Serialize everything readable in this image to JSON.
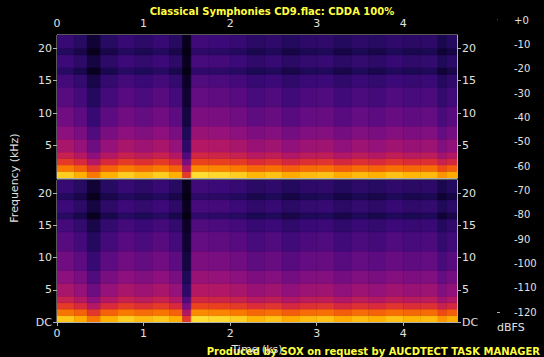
{
  "chart_data": {
    "type": "heatmap",
    "title": "Classical Symphonies CD9.flac: CDDA 100%",
    "annotations": [
      "Produced by SOX on request by AUCDTECT TASK MANAGER"
    ],
    "x_label": "Time (ks)",
    "y_label": "Frequency (kHz)",
    "xlim": [
      0,
      4.62
    ],
    "xticks": [
      0,
      1,
      2,
      3,
      4
    ],
    "ylim": [
      0,
      22.05
    ],
    "time_edges": [
      0,
      0.2,
      0.35,
      0.5,
      0.7,
      0.9,
      1.1,
      1.3,
      1.45,
      1.55,
      1.75,
      2.0,
      2.2,
      2.4,
      2.6,
      2.8,
      3.0,
      3.2,
      3.4,
      3.6,
      3.8,
      4.0,
      4.2,
      4.4,
      4.5,
      4.62
    ],
    "freq_edges": [
      0,
      1,
      2,
      3,
      4,
      6,
      8,
      11,
      14,
      16,
      17,
      19,
      20,
      22.05
    ],
    "channels": [
      {
        "yticks": [
          5,
          10,
          15,
          20
        ],
        "cells": [
          [
            -15,
            -20,
            -30,
            -20,
            -15,
            -18,
            -15,
            -20,
            -45,
            -12,
            -13,
            -15,
            -19,
            -17,
            -21,
            -18,
            -17,
            -21,
            -18,
            -20,
            -17,
            -19,
            -18,
            -25,
            -21
          ],
          [
            -30,
            -35,
            -45,
            -35,
            -30,
            -33,
            -30,
            -35,
            -60,
            -27,
            -28,
            -30,
            -34,
            -32,
            -36,
            -33,
            -32,
            -36,
            -33,
            -35,
            -32,
            -34,
            -33,
            -40,
            -36
          ],
          [
            -45,
            -50,
            -60,
            -50,
            -45,
            -48,
            -45,
            -50,
            -75,
            -42,
            -43,
            -45,
            -49,
            -47,
            -51,
            -48,
            -47,
            -51,
            -48,
            -50,
            -47,
            -49,
            -48,
            -55,
            -51
          ],
          [
            -55,
            -60,
            -70,
            -60,
            -55,
            -58,
            -55,
            -60,
            -85,
            -52,
            -53,
            -55,
            -59,
            -57,
            -61,
            -58,
            -57,
            -61,
            -58,
            -60,
            -57,
            -59,
            -58,
            -65,
            -61
          ],
          [
            -63,
            -68,
            -78,
            -68,
            -63,
            -66,
            -63,
            -68,
            -95,
            -60,
            -61,
            -63,
            -67,
            -65,
            -69,
            -66,
            -65,
            -69,
            -66,
            -68,
            -65,
            -67,
            -66,
            -73,
            -69
          ],
          [
            -70,
            -75,
            -85,
            -75,
            -70,
            -73,
            -70,
            -75,
            -100,
            -67,
            -68,
            -70,
            -74,
            -72,
            -76,
            -73,
            -72,
            -76,
            -73,
            -75,
            -72,
            -74,
            -73,
            -80,
            -76
          ],
          [
            -77,
            -82,
            -92,
            -82,
            -77,
            -80,
            -77,
            -82,
            -105,
            -74,
            -75,
            -77,
            -81,
            -79,
            -83,
            -80,
            -79,
            -83,
            -80,
            -82,
            -79,
            -81,
            -80,
            -87,
            -83
          ],
          [
            -83,
            -88,
            -98,
            -88,
            -83,
            -86,
            -83,
            -88,
            -108,
            -80,
            -81,
            -83,
            -87,
            -85,
            -89,
            -86,
            -85,
            -89,
            -86,
            -88,
            -85,
            -87,
            -86,
            -93,
            -89
          ],
          [
            -88,
            -93,
            -103,
            -93,
            -88,
            -91,
            -88,
            -93,
            -110,
            -85,
            -86,
            -88,
            -92,
            -90,
            -94,
            -91,
            -90,
            -94,
            -91,
            -93,
            -90,
            -92,
            -91,
            -98,
            -94
          ],
          [
            -97,
            -102,
            -112,
            -102,
            -97,
            -100,
            -97,
            -102,
            -115,
            -94,
            -95,
            -97,
            -101,
            -99,
            -103,
            -100,
            -99,
            -103,
            -100,
            -102,
            -99,
            -101,
            -100,
            -107,
            -103
          ],
          [
            -90,
            -95,
            -105,
            -95,
            -90,
            -93,
            -90,
            -95,
            -112,
            -87,
            -88,
            -90,
            -94,
            -92,
            -96,
            -93,
            -92,
            -96,
            -93,
            -95,
            -92,
            -94,
            -93,
            -100,
            -96
          ],
          [
            -98,
            -103,
            -113,
            -103,
            -98,
            -101,
            -98,
            -103,
            -115,
            -95,
            -96,
            -98,
            -102,
            -100,
            -104,
            -101,
            -100,
            -104,
            -101,
            -103,
            -100,
            -102,
            -101,
            -108,
            -104
          ],
          [
            -92,
            -97,
            -107,
            -97,
            -92,
            -95,
            -92,
            -97,
            -113,
            -89,
            -90,
            -92,
            -96,
            -94,
            -98,
            -95,
            -94,
            -98,
            -95,
            -97,
            -94,
            -96,
            -95,
            -102,
            -98
          ]
        ]
      },
      {
        "yticks": [
          {
            "value": 0,
            "label": "DC"
          },
          5,
          10,
          15,
          20
        ],
        "cells": [
          [
            -16,
            -21,
            -31,
            -20,
            -15,
            -18,
            -16,
            -20,
            -46,
            -12,
            -13,
            -15,
            -19,
            -17,
            -21,
            -18,
            -17,
            -21,
            -18,
            -20,
            -17,
            -19,
            -18,
            -25,
            -21
          ],
          [
            -31,
            -35,
            -46,
            -35,
            -30,
            -33,
            -31,
            -35,
            -61,
            -27,
            -28,
            -30,
            -34,
            -32,
            -36,
            -33,
            -32,
            -36,
            -33,
            -35,
            -32,
            -34,
            -33,
            -40,
            -36
          ],
          [
            -45,
            -50,
            -60,
            -50,
            -45,
            -48,
            -45,
            -50,
            -75,
            -42,
            -43,
            -45,
            -49,
            -47,
            -51,
            -48,
            -47,
            -51,
            -48,
            -50,
            -47,
            -49,
            -48,
            -55,
            -51
          ],
          [
            -55,
            -60,
            -70,
            -60,
            -55,
            -58,
            -55,
            -60,
            -85,
            -52,
            -53,
            -55,
            -59,
            -57,
            -61,
            -58,
            -57,
            -61,
            -58,
            -60,
            -57,
            -59,
            -58,
            -65,
            -61
          ],
          [
            -63,
            -68,
            -78,
            -68,
            -63,
            -66,
            -63,
            -68,
            -95,
            -60,
            -61,
            -63,
            -67,
            -65,
            -69,
            -66,
            -65,
            -69,
            -66,
            -68,
            -65,
            -67,
            -66,
            -73,
            -69
          ],
          [
            -70,
            -75,
            -85,
            -75,
            -70,
            -73,
            -70,
            -75,
            -100,
            -67,
            -68,
            -70,
            -74,
            -72,
            -76,
            -73,
            -72,
            -76,
            -73,
            -75,
            -72,
            -74,
            -73,
            -80,
            -76
          ],
          [
            -77,
            -82,
            -92,
            -82,
            -77,
            -80,
            -77,
            -82,
            -105,
            -74,
            -75,
            -77,
            -81,
            -79,
            -83,
            -80,
            -79,
            -83,
            -80,
            -82,
            -79,
            -81,
            -80,
            -87,
            -83
          ],
          [
            -83,
            -88,
            -98,
            -88,
            -83,
            -86,
            -83,
            -88,
            -108,
            -80,
            -81,
            -83,
            -87,
            -85,
            -89,
            -86,
            -85,
            -89,
            -86,
            -88,
            -85,
            -87,
            -86,
            -93,
            -89
          ],
          [
            -88,
            -93,
            -103,
            -93,
            -88,
            -91,
            -88,
            -93,
            -110,
            -85,
            -86,
            -88,
            -92,
            -90,
            -94,
            -91,
            -90,
            -94,
            -91,
            -93,
            -90,
            -92,
            -91,
            -98,
            -94
          ],
          [
            -97,
            -102,
            -112,
            -102,
            -97,
            -100,
            -97,
            -102,
            -115,
            -94,
            -95,
            -97,
            -101,
            -99,
            -103,
            -100,
            -99,
            -103,
            -100,
            -102,
            -99,
            -101,
            -100,
            -107,
            -103
          ],
          [
            -90,
            -95,
            -105,
            -95,
            -90,
            -93,
            -90,
            -95,
            -112,
            -87,
            -88,
            -90,
            -94,
            -92,
            -96,
            -93,
            -92,
            -96,
            -93,
            -95,
            -92,
            -94,
            -93,
            -100,
            -96
          ],
          [
            -98,
            -103,
            -113,
            -103,
            -98,
            -101,
            -98,
            -103,
            -115,
            -95,
            -96,
            -98,
            -102,
            -100,
            -104,
            -101,
            -100,
            -104,
            -101,
            -103,
            -100,
            -102,
            -101,
            -108,
            -104
          ],
          [
            -92,
            -97,
            -107,
            -97,
            -92,
            -95,
            -92,
            -97,
            -113,
            -89,
            -90,
            -92,
            -96,
            -94,
            -98,
            -95,
            -94,
            -98,
            -95,
            -97,
            -94,
            -96,
            -95,
            -102,
            -98
          ]
        ]
      }
    ],
    "colorbar": {
      "range": [
        -120,
        0
      ],
      "ticks": [
        {
          "value": 0,
          "label": "+0"
        },
        -10,
        -20,
        -30,
        -40,
        -50,
        -60,
        -70,
        -80,
        -90,
        -100,
        -110,
        -120
      ],
      "label": "dBFS"
    }
  }
}
